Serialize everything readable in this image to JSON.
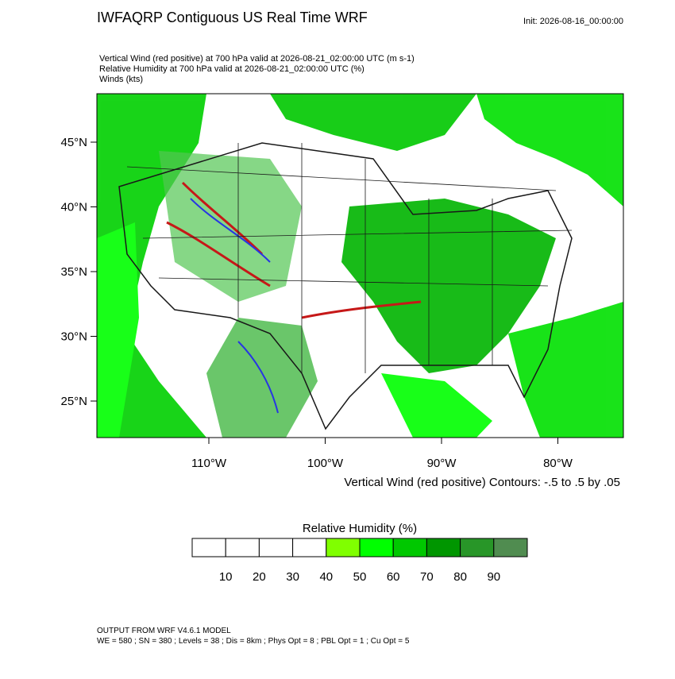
{
  "header": {
    "title": "IWFAQRP Contiguous US Real Time WRF",
    "init": "Init: 2026-08-16_00:00:00",
    "subtitles": [
      "Vertical Wind (red positive) at 700 hPa valid at 2026-08-21_02:00:00 UTC   (m s-1)",
      "Relative Humidity at 700 hPa valid at 2026-08-21_02:00:00 UTC   (%)",
      "Winds   (kts)"
    ]
  },
  "map": {
    "lat_ticks": [
      {
        "value": 45,
        "label": "45°N"
      },
      {
        "value": 40,
        "label": "40°N"
      },
      {
        "value": 35,
        "label": "35°N"
      },
      {
        "value": 30,
        "label": "30°N"
      },
      {
        "value": 25,
        "label": "25°N"
      }
    ],
    "lon_ticks": [
      {
        "value": 110,
        "label": "110°W"
      },
      {
        "value": 100,
        "label": "100°W"
      },
      {
        "value": 90,
        "label": "90°W"
      },
      {
        "value": 80,
        "label": "80°W"
      }
    ],
    "contour_caption": "Vertical Wind (red positive) Contours: -.5 to .5 by .05"
  },
  "colorbar": {
    "title": "Relative Humidity  (%)",
    "colors": [
      "#ffffff",
      "#ffffff",
      "#ffffff",
      "#ffffff",
      "#80ff00",
      "#00ff00",
      "#00c800",
      "#009600",
      "#289628",
      "#508c50"
    ],
    "labels": [
      10,
      20,
      30,
      40,
      50,
      60,
      70,
      80,
      90
    ]
  },
  "footer": [
    "OUTPUT FROM WRF V4.6.1 MODEL",
    "WE = 580 ; SN = 380 ; Levels = 38 ; Dis = 8km ; Phys Opt = 8 ; PBL Opt = 1 ; Cu Opt = 5"
  ]
}
